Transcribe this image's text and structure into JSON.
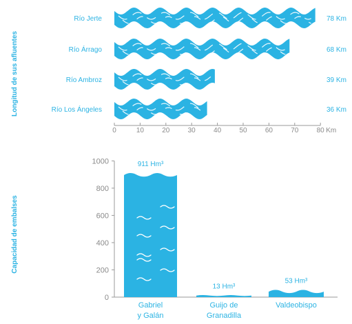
{
  "colors": {
    "accent": "#2bb3e3",
    "axis": "#9a9a9a",
    "tick_text": "#8a8a8a",
    "wave_line": "#ffffff"
  },
  "chart_data": [
    {
      "type": "bar",
      "orientation": "horizontal",
      "ylabel": "Longitud de sus afluentes",
      "categories": [
        "Río Jerte",
        "Río Árrago",
        "Río Ambroz",
        "Río Los Ángeles"
      ],
      "values": [
        78,
        68,
        39,
        36
      ],
      "value_labels": [
        "78 Km",
        "68 Km",
        "39 Km",
        "36 Km"
      ],
      "xlim": [
        0,
        80
      ],
      "xticks": [
        0,
        10,
        20,
        30,
        40,
        50,
        60,
        70,
        80
      ],
      "x_unit": "Km",
      "grid": false
    },
    {
      "type": "bar",
      "ylabel": "Capacidad de embalses",
      "categories": [
        [
          "Gabriel",
          "y Galán"
        ],
        [
          "Guijo de",
          "Granadilla"
        ],
        [
          "Valdeobispo"
        ]
      ],
      "values": [
        911,
        13,
        53
      ],
      "value_labels": [
        "911 Hm³",
        "13 Hm³",
        "53 Hm³"
      ],
      "ylim": [
        0,
        1000
      ],
      "yticks": [
        0,
        200,
        400,
        600,
        800,
        1000
      ],
      "grid": false
    }
  ]
}
